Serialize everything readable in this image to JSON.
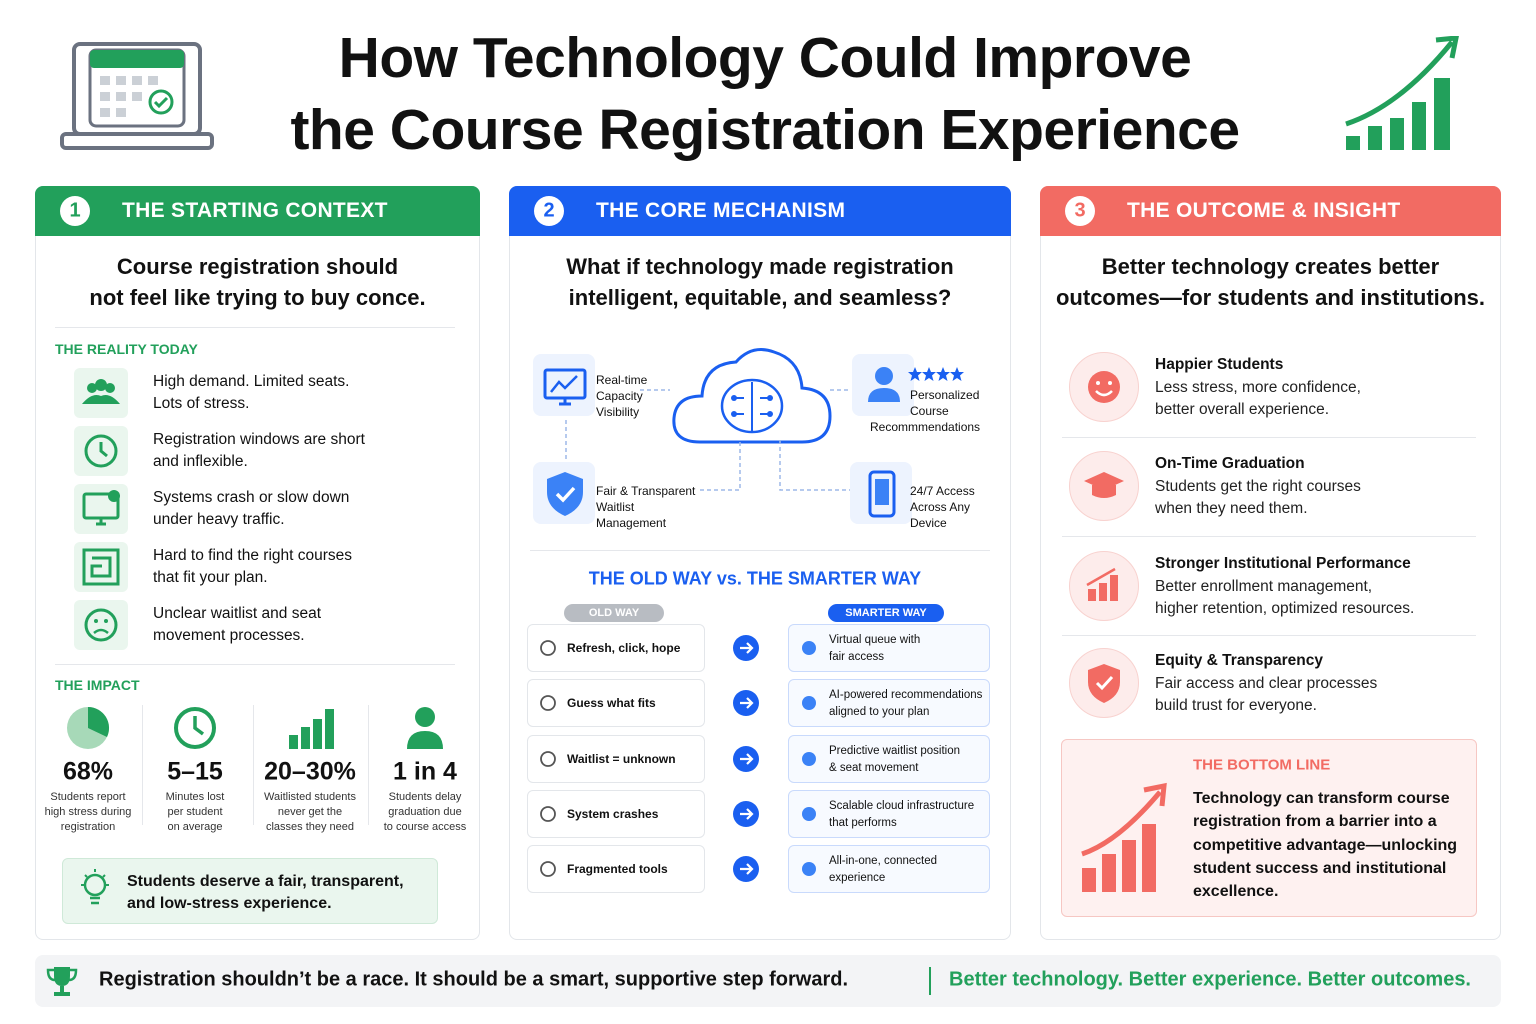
{
  "header": {
    "title_lines": [
      "How Technology Could Improve",
      "the Course Registration Experience"
    ]
  },
  "panels": [
    {
      "number": "1",
      "heading": "THE STARTING CONTEXT",
      "lead": [
        "Course registration should",
        "not feel like trying to buy conce."
      ],
      "reality_heading": "THE REALITY TODAY",
      "reality_items": [
        [
          "High demand. Limited seats.",
          "Lots of stress."
        ],
        [
          "Registration windows are short",
          "and inflexible."
        ],
        [
          "Systems crash or slow down",
          "under heavy traffic."
        ],
        [
          "Hard to find the right courses",
          "that fit your plan."
        ],
        [
          "Unclear waitlist and seat",
          "movement processes."
        ]
      ],
      "impact_heading": "THE IMPACT",
      "stats": [
        {
          "value": "68%",
          "caption": [
            "Students report",
            "high stress during",
            "registration"
          ]
        },
        {
          "value": "5–15",
          "caption": [
            "Minutes lost",
            "per student",
            "on average"
          ]
        },
        {
          "value": "20–30%",
          "caption": [
            "Waitlisted students",
            "never get the",
            "classes they need"
          ]
        },
        {
          "value": "1 in 4",
          "caption": [
            "Students delay",
            "graduation due",
            "to course access"
          ]
        }
      ],
      "callout": [
        "Students deserve a fair, transparent,",
        "and low-stress experience."
      ]
    },
    {
      "number": "2",
      "heading": "THE CORE MECHANISM",
      "lead": [
        "What if technology made registration",
        "intelligent, equitable, and seamless?"
      ],
      "features": [
        [
          "Real-time",
          "Capacity",
          "Visibility"
        ],
        [
          "Personalized",
          "Course",
          "Recommmendations"
        ],
        [
          "Fair & Transparent",
          "Waitlist",
          "Management"
        ],
        [
          "24/7 Access",
          "Across Any",
          "Device"
        ]
      ],
      "comparison_title": "THE OLD WAY vs. THE SMARTER WAY",
      "old_label": "OLD WAY",
      "new_label": "SMARTER WAY",
      "rows": [
        {
          "old": "Refresh, click, hope",
          "new": [
            "Virtual queue with",
            "fair access"
          ]
        },
        {
          "old": "Guess what fits",
          "new": [
            "AI-powered recommendations",
            "aligned to your plan"
          ]
        },
        {
          "old": "Waitlist = unknown",
          "new": [
            "Predictive waitlist position",
            "& seat movement"
          ]
        },
        {
          "old": "System crashes",
          "new": [
            "Scalable cloud infrastructure",
            "that performs"
          ]
        },
        {
          "old": "Fragmented tools",
          "new": [
            "All-in-one, connected",
            "experience"
          ]
        }
      ]
    },
    {
      "number": "3",
      "heading": "THE OUTCOME & INSIGHT",
      "lead": [
        "Better technology creates better",
        "outcomes—for students and institutions."
      ],
      "outcomes": [
        {
          "title": "Happier Students",
          "text": [
            "Less stress, more confidence,",
            "better overall experience."
          ]
        },
        {
          "title": "On-Time Graduation",
          "text": [
            "Students get the right courses",
            "when they need them."
          ]
        },
        {
          "title": "Stronger Institutional Performance",
          "text": [
            "Better enrollment management,",
            "higher retention, optimized resources."
          ]
        },
        {
          "title": "Equity & Transparency",
          "text": [
            "Fair access and clear processes",
            "build trust for everyone."
          ]
        }
      ],
      "bottom_line": {
        "heading": "THE BOTTOM LINE",
        "text": [
          "Technology can transform course",
          "registration from a barrier into a",
          "competitive advantage—unlocking",
          "student success and institutional",
          "excellence."
        ]
      }
    }
  ],
  "footer": {
    "message": "Registration shouldn’t be a race. It should be a smart, supportive step forward.",
    "tagline": "Better technology. Better experience. Better outcomes."
  }
}
